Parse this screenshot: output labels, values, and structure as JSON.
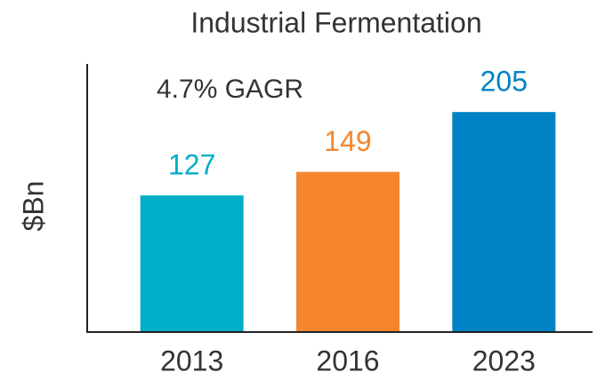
{
  "chart_data": {
    "type": "bar",
    "title": "Industrial Fermentation",
    "y_label": "$Bn",
    "annotation": "4.7% GAGR",
    "categories": [
      "2013",
      "2016",
      "2023"
    ],
    "values": [
      127,
      149,
      205
    ],
    "colors": [
      "#00aec7",
      "#f5862e",
      "#0083c4"
    ],
    "ylim": [
      0,
      250
    ]
  }
}
